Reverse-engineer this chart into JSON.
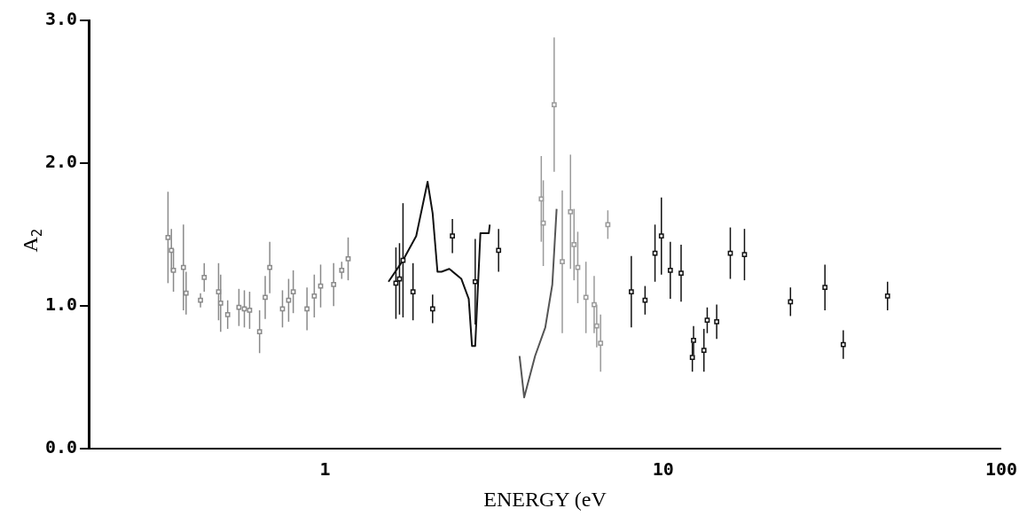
{
  "chart_data": {
    "type": "scatter",
    "xlabel": "ENERGY (eV",
    "ylabel": "A$_{2}$",
    "log": "x",
    "xlim": [
      0.2,
      100
    ],
    "xticks": [
      1,
      10,
      100
    ],
    "ylim": [
      0,
      3
    ],
    "yticks": [
      {
        "value": 0,
        "label": "0.0"
      },
      {
        "value": 1,
        "label": "1.0"
      },
      {
        "value": 2,
        "label": "2.0"
      },
      {
        "value": 3,
        "label": "3.0"
      }
    ],
    "grid": false,
    "legend": false,
    "marker": "square",
    "series": [
      {
        "color": "#8a8a8a",
        "x": [
          0.343,
          0.351,
          0.356,
          0.381,
          0.388,
          0.428,
          0.439,
          0.484,
          0.491,
          0.515,
          0.556,
          0.577,
          0.598,
          0.64,
          0.665,
          0.686,
          0.748,
          0.78,
          0.805,
          0.884,
          0.929,
          0.97,
          1.06,
          1.12,
          1.17
        ],
        "values": [
          1.48,
          1.39,
          1.25,
          1.27,
          1.09,
          1.04,
          1.2,
          1.1,
          1.02,
          0.94,
          0.99,
          0.98,
          0.97,
          0.82,
          1.06,
          1.27,
          0.98,
          1.04,
          1.1,
          0.98,
          1.07,
          1.14,
          1.15,
          1.25,
          1.33
        ],
        "errors": [
          0.32,
          0.15,
          0.15,
          0.3,
          0.15,
          0.05,
          0.1,
          0.2,
          0.2,
          0.1,
          0.13,
          0.13,
          0.13,
          0.15,
          0.15,
          0.18,
          0.13,
          0.15,
          0.15,
          0.15,
          0.15,
          0.15,
          0.15,
          0.06,
          0.15
        ]
      },
      {
        "color": "#111111",
        "x": [
          1.62,
          1.66,
          1.7,
          1.82,
          2.08,
          2.38,
          2.78,
          3.26,
          8.05,
          8.84,
          9.46,
          9.88,
          10.5,
          11.3,
          12.2,
          12.3,
          13.2,
          13.5,
          14.4,
          15.8,
          17.4,
          23.8,
          30.1,
          34.1,
          46.1
        ],
        "values": [
          1.16,
          1.19,
          1.32,
          1.1,
          0.98,
          1.49,
          1.17,
          1.39,
          1.1,
          1.04,
          1.37,
          1.49,
          1.25,
          1.23,
          0.64,
          0.76,
          0.69,
          0.9,
          0.89,
          1.37,
          1.36,
          1.03,
          1.13,
          0.73,
          1.07
        ],
        "errors": [
          0.25,
          0.25,
          0.4,
          0.2,
          0.1,
          0.12,
          0.3,
          0.15,
          0.25,
          0.1,
          0.2,
          0.27,
          0.2,
          0.2,
          0.1,
          0.1,
          0.15,
          0.09,
          0.12,
          0.18,
          0.18,
          0.1,
          0.16,
          0.1,
          0.1
        ]
      },
      {
        "color": "#9a9a9a",
        "x": [
          4.36,
          4.42,
          4.76,
          5.03,
          5.32,
          5.45,
          5.59,
          5.91,
          6.25,
          6.36,
          6.53,
          6.86
        ],
        "values": [
          1.75,
          1.58,
          2.41,
          1.31,
          1.66,
          1.43,
          1.27,
          1.06,
          1.01,
          0.86,
          0.74,
          1.57
        ],
        "errors": [
          0.3,
          0.3,
          0.47,
          0.5,
          0.4,
          0.25,
          0.25,
          0.25,
          0.2,
          0.15,
          0.2,
          0.1
        ]
      },
      {
        "type": "line",
        "marker": "none",
        "color": "#111111",
        "x": [
          1.54,
          1.7,
          1.86,
          2.01,
          2.08,
          2.15,
          2.21,
          2.33,
          2.53,
          2.66,
          2.72,
          2.78,
          2.88,
          3.05,
          3.07
        ],
        "values": [
          1.17,
          1.32,
          1.49,
          1.87,
          1.65,
          1.24,
          1.24,
          1.26,
          1.19,
          1.05,
          0.72,
          0.72,
          1.51,
          1.51,
          1.57
        ]
      },
      {
        "type": "line",
        "marker": "none",
        "color": "#555555",
        "x": [
          3.76,
          3.88,
          4.18,
          4.48,
          4.7,
          4.84
        ],
        "values": [
          0.65,
          0.36,
          0.65,
          0.85,
          1.15,
          1.68
        ]
      }
    ]
  }
}
